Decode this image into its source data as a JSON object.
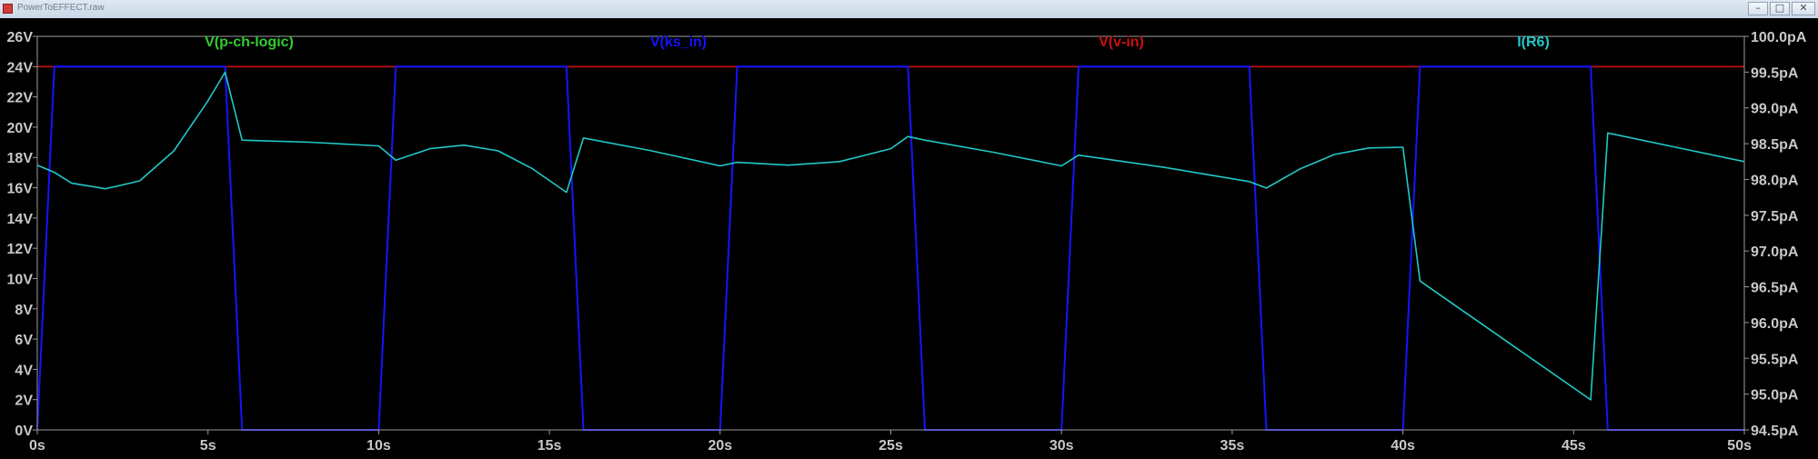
{
  "window": {
    "title": "PowerToEFFECT.raw",
    "minimize_glyph": "–",
    "maximize_glyph": "□",
    "close_glyph": "✕"
  },
  "colors": {
    "background": "#000000",
    "axis": "#9a9a9a",
    "tick_text": "#c8c8c8",
    "p_ch_logic": "#33cc33",
    "ks_in": "#1414ff",
    "v_in": "#cc1010",
    "i_r6": "#22c8c8"
  },
  "chart_data": {
    "type": "line",
    "x_axis": {
      "unit": "s",
      "range": [
        0,
        50
      ],
      "ticks": [
        0,
        5,
        10,
        15,
        20,
        25,
        30,
        35,
        40,
        45,
        50
      ],
      "tick_labels": [
        "0s",
        "5s",
        "10s",
        "15s",
        "20s",
        "25s",
        "30s",
        "35s",
        "40s",
        "45s",
        "50s"
      ]
    },
    "y_left": {
      "unit": "V",
      "range": [
        0,
        26
      ],
      "ticks": [
        0,
        2,
        4,
        6,
        8,
        10,
        12,
        14,
        16,
        18,
        20,
        22,
        24,
        26
      ],
      "tick_labels": [
        "0V",
        "2V",
        "4V",
        "6V",
        "8V",
        "10V",
        "12V",
        "14V",
        "16V",
        "18V",
        "20V",
        "22V",
        "24V",
        "26V"
      ]
    },
    "y_right": {
      "unit": "pA",
      "range": [
        94.5,
        100.0
      ],
      "ticks": [
        94.5,
        95.0,
        95.5,
        96.0,
        96.5,
        97.0,
        97.5,
        98.0,
        98.5,
        99.0,
        99.5,
        100.0
      ],
      "tick_labels": [
        "94.5pA",
        "95.0pA",
        "95.5pA",
        "96.0pA",
        "96.5pA",
        "97.0pA",
        "97.5pA",
        "98.0pA",
        "98.5pA",
        "99.0pA",
        "99.5pA",
        "100.0pA"
      ]
    },
    "grid": false,
    "series": [
      {
        "name": "V(p-ch-logic)",
        "axis": "left",
        "color": "#33cc33",
        "points": []
      },
      {
        "name": "V(ks_in)",
        "axis": "left",
        "color": "#1414ff",
        "points": [
          [
            0,
            0
          ],
          [
            0.5,
            24
          ],
          [
            5.5,
            24
          ],
          [
            6,
            0
          ],
          [
            10,
            0
          ],
          [
            10.5,
            24
          ],
          [
            15.5,
            24
          ],
          [
            16,
            0
          ],
          [
            20,
            0
          ],
          [
            20.5,
            24
          ],
          [
            25.5,
            24
          ],
          [
            26,
            0
          ],
          [
            30,
            0
          ],
          [
            30.5,
            24
          ],
          [
            35.5,
            24
          ],
          [
            36,
            0
          ],
          [
            40,
            0
          ],
          [
            40.5,
            24
          ],
          [
            45.5,
            24
          ],
          [
            46,
            0
          ],
          [
            50,
            0
          ]
        ]
      },
      {
        "name": "V(v-in)",
        "axis": "left",
        "color": "#cc1010",
        "points": [
          [
            0,
            24
          ],
          [
            50,
            24
          ]
        ]
      },
      {
        "name": "I(R6)",
        "axis": "right",
        "color": "#22c8c8",
        "points": [
          [
            0,
            98.2
          ],
          [
            0.5,
            98.1
          ],
          [
            1.0,
            97.95
          ],
          [
            2.0,
            97.87
          ],
          [
            3.0,
            97.98
          ],
          [
            4.0,
            98.4
          ],
          [
            5.0,
            99.1
          ],
          [
            5.5,
            99.5
          ],
          [
            6.0,
            98.55
          ],
          [
            8.0,
            98.52
          ],
          [
            10.0,
            98.47
          ],
          [
            10.5,
            98.27
          ],
          [
            11.5,
            98.43
          ],
          [
            12.5,
            98.48
          ],
          [
            13.5,
            98.4
          ],
          [
            14.5,
            98.15
          ],
          [
            15.5,
            97.82
          ],
          [
            16.0,
            98.58
          ],
          [
            18.0,
            98.4
          ],
          [
            20.0,
            98.19
          ],
          [
            20.5,
            98.24
          ],
          [
            22.0,
            98.2
          ],
          [
            23.5,
            98.25
          ],
          [
            25.0,
            98.43
          ],
          [
            25.5,
            98.6
          ],
          [
            26.0,
            98.55
          ],
          [
            28.0,
            98.38
          ],
          [
            30.0,
            98.19
          ],
          [
            30.5,
            98.34
          ],
          [
            33.0,
            98.17
          ],
          [
            35.5,
            97.97
          ],
          [
            36.0,
            97.88
          ],
          [
            37.0,
            98.15
          ],
          [
            38.0,
            98.35
          ],
          [
            39.0,
            98.44
          ],
          [
            40.0,
            98.45
          ],
          [
            40.5,
            96.58
          ],
          [
            45.5,
            94.92
          ],
          [
            46.0,
            98.65
          ],
          [
            50.0,
            98.25
          ]
        ]
      }
    ]
  }
}
